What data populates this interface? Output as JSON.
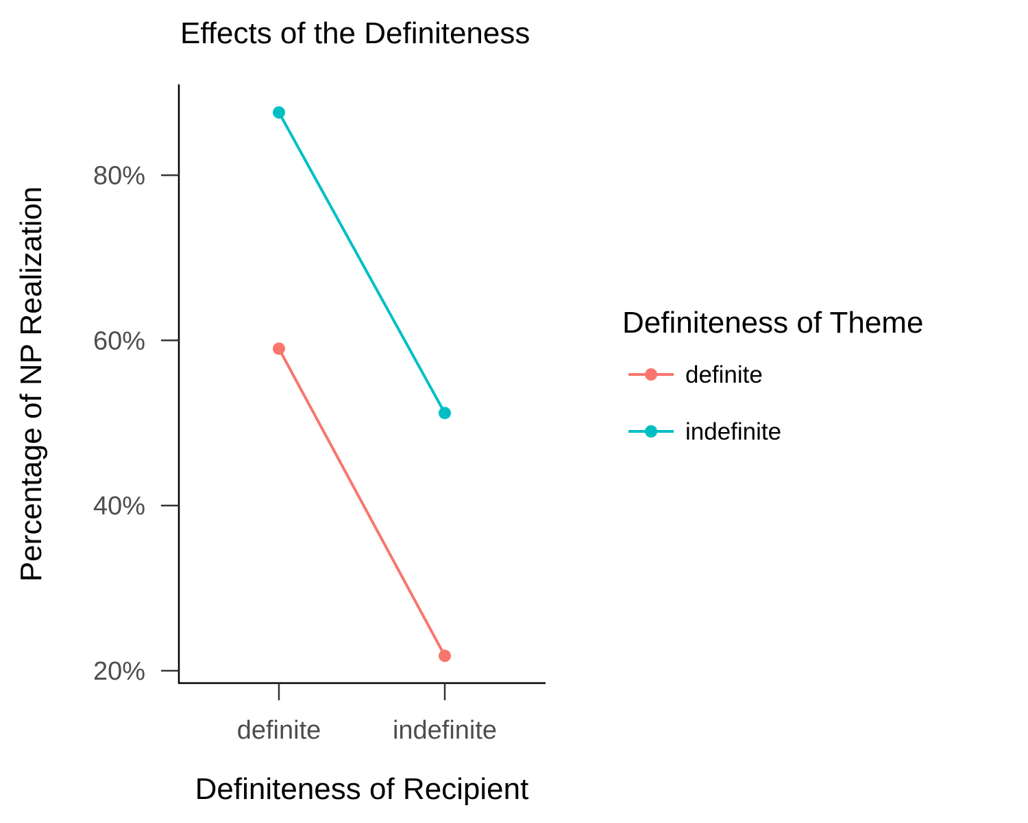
{
  "chart_data": {
    "type": "line",
    "title": "Effects of the Definiteness",
    "xlabel": "Definiteness of Recipient",
    "ylabel": "Percentage of NP Realization",
    "categories": [
      "definite",
      "indefinite"
    ],
    "y_ticks": [
      20,
      40,
      60,
      80
    ],
    "y_tick_labels": [
      "20%",
      "40%",
      "60%",
      "80%"
    ],
    "ylim": [
      18.5,
      91
    ],
    "grid": false,
    "legend": {
      "title": "Definiteness of Theme",
      "placement": "right"
    },
    "series": [
      {
        "name": "definite",
        "values": [
          59,
          21.8
        ],
        "color": "#F8766D"
      },
      {
        "name": "indefinite",
        "values": [
          87.6,
          51.2
        ],
        "color": "#00BFC4"
      }
    ]
  }
}
